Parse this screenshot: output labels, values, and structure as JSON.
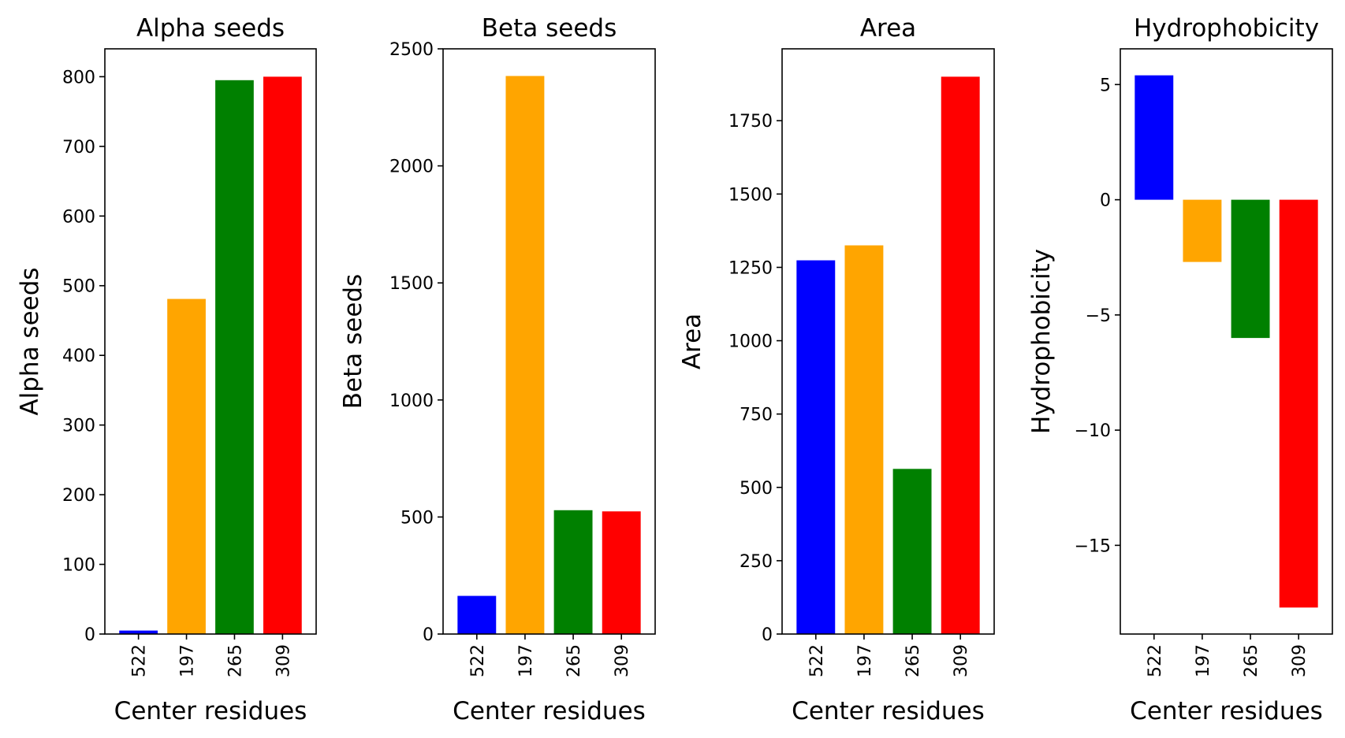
{
  "figure": {
    "bar_colors": [
      "#0000ff",
      "#ffa500",
      "#008000",
      "#ff0000"
    ]
  },
  "chart_data": [
    {
      "type": "bar",
      "title": "Alpha seeds",
      "xlabel": "Center residues",
      "ylabel": "Alpha seeds",
      "categories": [
        "522",
        "197",
        "265",
        "309"
      ],
      "values": [
        5,
        481,
        795,
        800
      ],
      "ylim": [
        0,
        840
      ],
      "yticks": [
        0,
        100,
        200,
        300,
        400,
        500,
        600,
        700,
        800
      ],
      "ytick_labels": [
        "0",
        "100",
        "200",
        "300",
        "400",
        "500",
        "600",
        "700",
        "800"
      ],
      "grid": false,
      "legend": false
    },
    {
      "type": "bar",
      "title": "Beta seeds",
      "xlabel": "Center residues",
      "ylabel": "Beta seeds",
      "categories": [
        "522",
        "197",
        "265",
        "309"
      ],
      "values": [
        163,
        2384,
        529,
        524
      ],
      "ylim": [
        0,
        2500
      ],
      "yticks": [
        0,
        500,
        1000,
        1500,
        2000,
        2500
      ],
      "ytick_labels": [
        "0",
        "500",
        "1000",
        "1500",
        "2000",
        "2500"
      ],
      "grid": false,
      "legend": false
    },
    {
      "type": "bar",
      "title": "Area",
      "xlabel": "Center residues",
      "ylabel": "Area",
      "categories": [
        "522",
        "197",
        "265",
        "309"
      ],
      "values": [
        1274,
        1325,
        563,
        1900
      ],
      "ylim": [
        0,
        1995
      ],
      "yticks": [
        0,
        250,
        500,
        750,
        1000,
        1250,
        1500,
        1750
      ],
      "ytick_labels": [
        "0",
        "250",
        "500",
        "750",
        "1000",
        "1250",
        "1500",
        "1750"
      ],
      "grid": false,
      "legend": false
    },
    {
      "type": "bar",
      "title": "Hydrophobicity",
      "xlabel": "Center residues",
      "ylabel": "Hydrophobicity",
      "categories": [
        "522",
        "197",
        "265",
        "309"
      ],
      "values": [
        5.4,
        -2.7,
        -6.0,
        -17.7
      ],
      "ylim": [
        -18.85,
        6.55
      ],
      "yticks": [
        5,
        0,
        -5,
        -10,
        -15
      ],
      "ytick_labels": [
        "5",
        "0",
        "−5",
        "−10",
        "−15"
      ],
      "grid": false,
      "legend": false
    }
  ]
}
